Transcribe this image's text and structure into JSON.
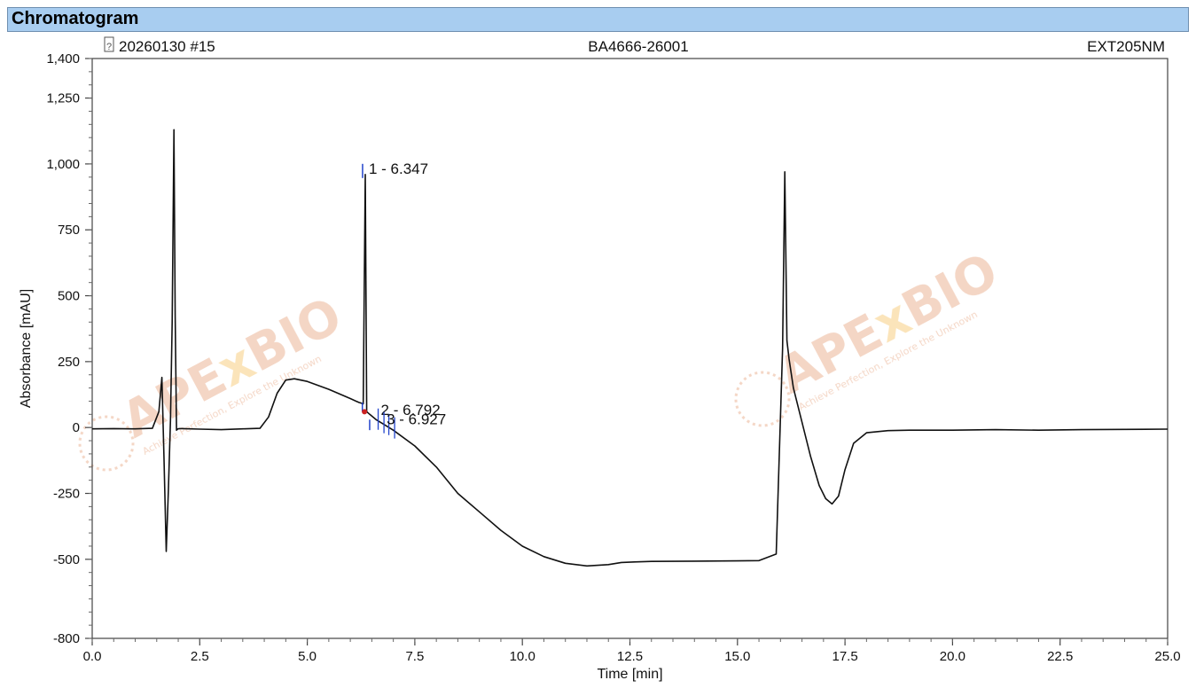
{
  "window": {
    "title": "Chromatogram"
  },
  "header": {
    "injection": "20260130 #15",
    "sample": "BA4666-26001",
    "channel": "EXT205NM",
    "icon": "report-status-icon"
  },
  "watermark": {
    "brand_a": "APE",
    "brand_x": "x",
    "brand_b": "BIO",
    "tagline": "Achieve Perfection, Explore the Unknown",
    "color": "#e08a5a"
  },
  "colors": {
    "trace": "#111111",
    "baseline_marker": "#cc2222",
    "peak_marker": "#2244cc",
    "title_bar": "#a8cdf0"
  },
  "chart_data": {
    "type": "line",
    "xlabel": "Time [min]",
    "ylabel": "Absorbance [mAU]",
    "xlim": [
      0,
      25
    ],
    "ylim": [
      -800,
      1400
    ],
    "x_ticks": [
      0,
      2.5,
      5,
      7.5,
      10,
      12.5,
      15,
      17.5,
      20,
      22.5,
      25
    ],
    "x_tick_labels": [
      "0.0",
      "2.5",
      "5.0",
      "7.5",
      "10.0",
      "12.5",
      "15.0",
      "17.5",
      "20.0",
      "22.5",
      "25.0"
    ],
    "y_ticks": [
      -800,
      -500,
      -250,
      0,
      250,
      500,
      750,
      1000,
      1250,
      1400
    ],
    "y_tick_labels": [
      "-800",
      "-500",
      "-250",
      "0",
      "250",
      "500",
      "750",
      "1,000",
      "1,250",
      "1,400"
    ],
    "series": [
      {
        "x": [
          0,
          0.5,
          1.0,
          1.4,
          1.55,
          1.62,
          1.67,
          1.72,
          1.77,
          1.82,
          1.86,
          1.9,
          1.93,
          1.96,
          1.99,
          2.03,
          2.1,
          2.5,
          3.0,
          3.5,
          3.9,
          4.1,
          4.3,
          4.5,
          4.7,
          5.0,
          5.5,
          6.0,
          6.2,
          6.3,
          6.347,
          6.38,
          6.45,
          6.6,
          6.8,
          7.0,
          7.5,
          8.0,
          8.5,
          9.0,
          9.5,
          10.0,
          10.5,
          11.0,
          11.5,
          12.0,
          12.3,
          12.6,
          13.0,
          14.0,
          15.0,
          15.5,
          15.9,
          16.05,
          16.1,
          16.15,
          16.2,
          16.3,
          16.5,
          16.7,
          16.9,
          17.05,
          17.2,
          17.35,
          17.5,
          17.7,
          18.0,
          18.5,
          19.0,
          20.0,
          21.0,
          22.0,
          23.0,
          24.0,
          25.0
        ],
        "y": [
          -5,
          -4,
          -5,
          -3,
          60,
          190,
          -120,
          -470,
          -240,
          30,
          400,
          1130,
          420,
          -10,
          -5,
          -4,
          -4,
          -6,
          -8,
          -5,
          -3,
          40,
          130,
          180,
          185,
          175,
          145,
          110,
          95,
          90,
          960,
          60,
          50,
          30,
          10,
          -10,
          -70,
          -150,
          -250,
          -320,
          -390,
          -450,
          -490,
          -515,
          -525,
          -520,
          -512,
          -510,
          -508,
          -507,
          -506,
          -505,
          -480,
          300,
          970,
          330,
          260,
          150,
          20,
          -110,
          -220,
          -270,
          -290,
          -260,
          -160,
          -60,
          -20,
          -12,
          -10,
          -10,
          -8,
          -10,
          -8,
          -7,
          -6
        ]
      }
    ],
    "peaks": [
      {
        "number": "1",
        "label": "1 - 6.347",
        "rt": 6.347,
        "height": 960
      },
      {
        "number": "2",
        "label": "2 - 6.792",
        "rt": 6.792,
        "height": 25
      },
      {
        "number": "3",
        "label": "3 - 6.927",
        "rt": 6.927,
        "height": 12
      }
    ],
    "grid": false
  }
}
